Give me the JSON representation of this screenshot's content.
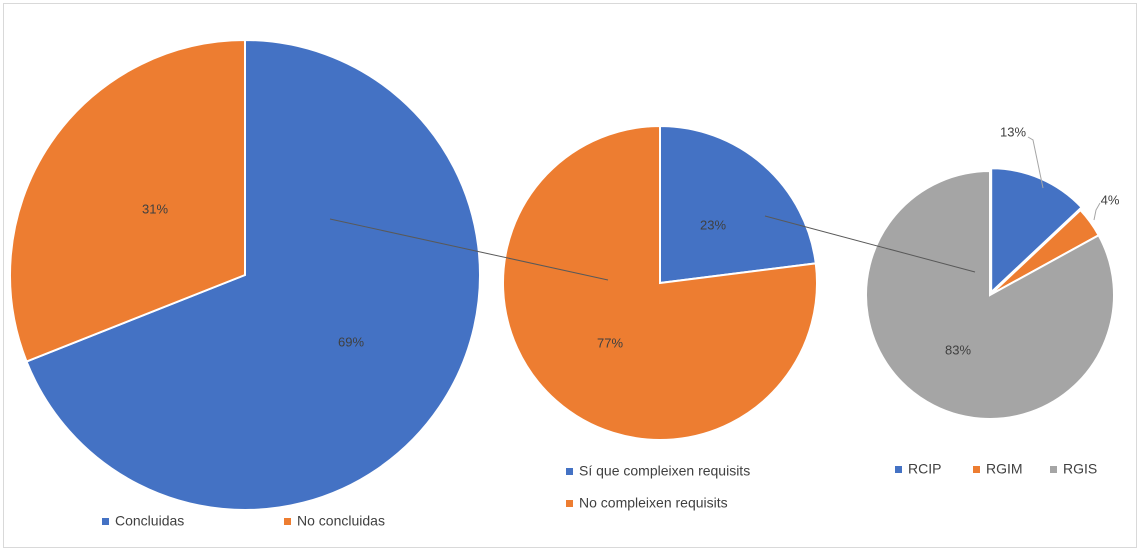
{
  "chart_data": [
    {
      "type": "pie",
      "title": "",
      "slices": [
        {
          "name": "Concluidas",
          "value": 69,
          "label": "69%",
          "color": "#4472C4"
        },
        {
          "name": "No concluidas",
          "value": 31,
          "label": "31%",
          "color": "#ED7D31"
        }
      ],
      "legend": "bottom",
      "legend_entries": [
        "Concluidas",
        "No concluidas"
      ]
    },
    {
      "type": "pie",
      "title": "",
      "slices": [
        {
          "name": "Sí que compleixen requisits",
          "value": 23,
          "label": "23%",
          "color": "#4472C4"
        },
        {
          "name": "No compleixen requisits",
          "value": 77,
          "label": "77%",
          "color": "#ED7D31"
        }
      ],
      "legend": "bottom",
      "legend_entries": [
        "Sí que compleixen requisits",
        "No compleixen requisits"
      ]
    },
    {
      "type": "pie",
      "title": "",
      "slices": [
        {
          "name": "RCIP",
          "value": 13,
          "label": "13%",
          "color": "#4472C4"
        },
        {
          "name": "RGIM",
          "value": 4,
          "label": "4%",
          "color": "#ED7D31"
        },
        {
          "name": "RGIS",
          "value": 83,
          "label": "83%",
          "color": "#A5A5A5"
        }
      ],
      "legend": "bottom",
      "legend_entries": [
        "RCIP",
        "RGIM",
        "RGIS"
      ]
    }
  ]
}
